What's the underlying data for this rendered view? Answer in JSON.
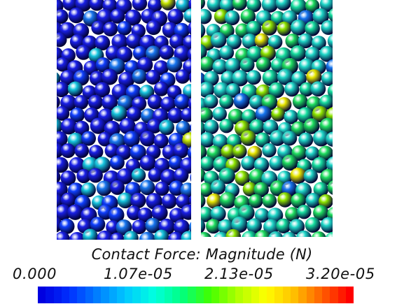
{
  "colorbar": {
    "title": "Contact Force: Magnitude (N)",
    "ticks": [
      "0.000",
      "1.07e-05",
      "2.13e-05",
      "3.20e-05"
    ],
    "range": [
      0.0,
      3.2e-05
    ],
    "colors": [
      "#0000e0",
      "#0030ff",
      "#0080ff",
      "#00c8ff",
      "#00ffe0",
      "#00ff80",
      "#40ff00",
      "#b0ff00",
      "#ffff00",
      "#ffc000",
      "#ff6000",
      "#ff0000"
    ]
  },
  "panels": [
    {
      "name": "left-sample",
      "dominant_color": "#1020d0"
    },
    {
      "name": "right-sample",
      "dominant_color": "#20d0c0"
    }
  ]
}
